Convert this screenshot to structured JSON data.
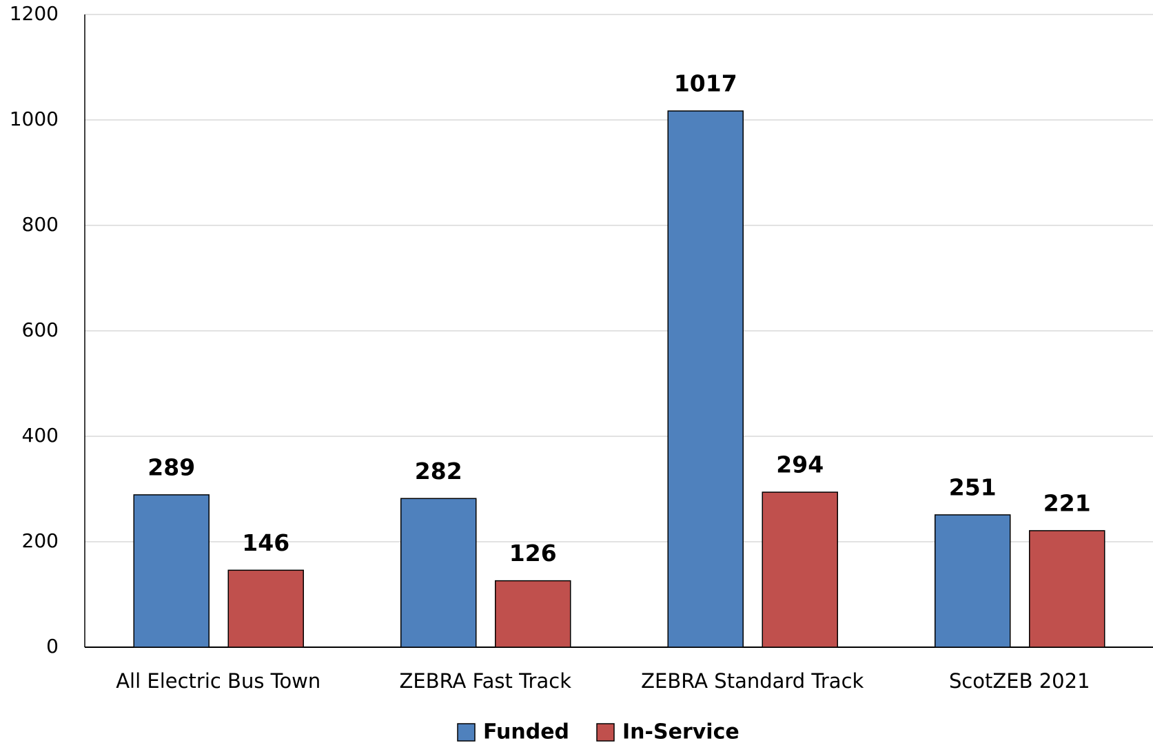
{
  "chart_data": {
    "type": "bar",
    "categories": [
      "All Electric Bus Town",
      "ZEBRA Fast Track",
      "ZEBRA Standard Track",
      "ScotZEB 2021"
    ],
    "series": [
      {
        "name": "Funded",
        "color": "#4f81bd",
        "values": [
          289,
          282,
          1017,
          251
        ]
      },
      {
        "name": "In-Service",
        "color": "#c0504d",
        "values": [
          146,
          126,
          294,
          221
        ]
      }
    ],
    "ylim": [
      0,
      1200
    ],
    "yticks": [
      0,
      200,
      400,
      600,
      800,
      1000,
      1200
    ],
    "grid": true,
    "legend": "bottom"
  }
}
